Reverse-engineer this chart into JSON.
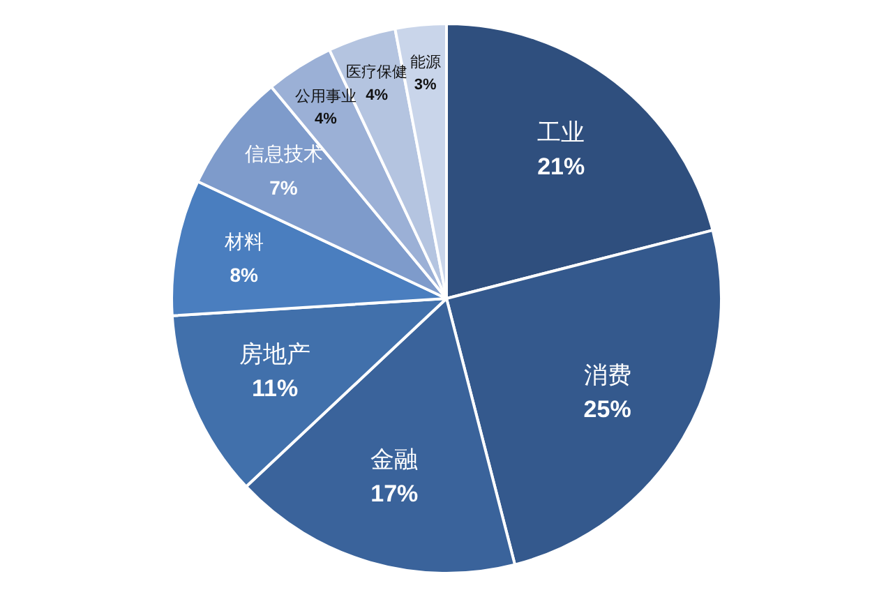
{
  "chart_data": {
    "type": "pie",
    "categories": [
      "工业",
      "消费",
      "金融",
      "房地产",
      "材料",
      "信息技术",
      "公用事业",
      "医疗保健",
      "能源"
    ],
    "values": [
      21,
      25,
      17,
      11,
      8,
      7,
      4,
      4,
      3
    ],
    "value_labels": [
      "21%",
      "25%",
      "17%",
      "11%",
      "8%",
      "7%",
      "4%",
      "4%",
      "3%"
    ],
    "colors": [
      "#2f4f7e",
      "#34598d",
      "#3a639b",
      "#4170ab",
      "#4a7ebf",
      "#7e9bcb",
      "#9bb0d6",
      "#b4c4e0",
      "#c9d5ea"
    ],
    "legend": false
  }
}
